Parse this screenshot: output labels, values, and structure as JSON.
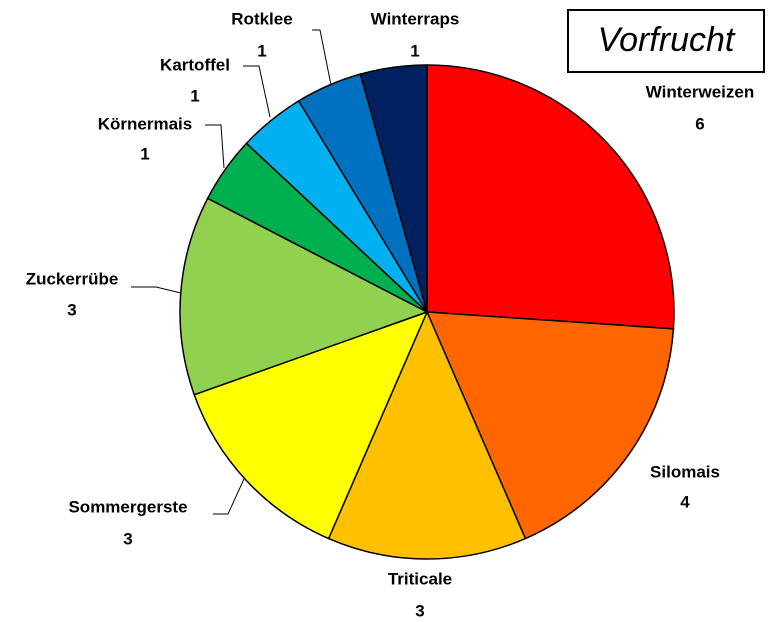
{
  "chart_data": {
    "type": "pie",
    "title": "Vorfrucht",
    "categories": [
      "Winterweizen",
      "Silomais",
      "Triticale",
      "Sommergerste",
      "Zuckerrübe",
      "Körnermais",
      "Kartoffel",
      "Rotklee",
      "Winterraps"
    ],
    "values": [
      6,
      4,
      3,
      3,
      3,
      1,
      1,
      1,
      1
    ],
    "colors": [
      "#ff0000",
      "#ff6600",
      "#ffc000",
      "#ffff00",
      "#92d050",
      "#00b050",
      "#00b0f0",
      "#0070c0",
      "#002060"
    ]
  }
}
